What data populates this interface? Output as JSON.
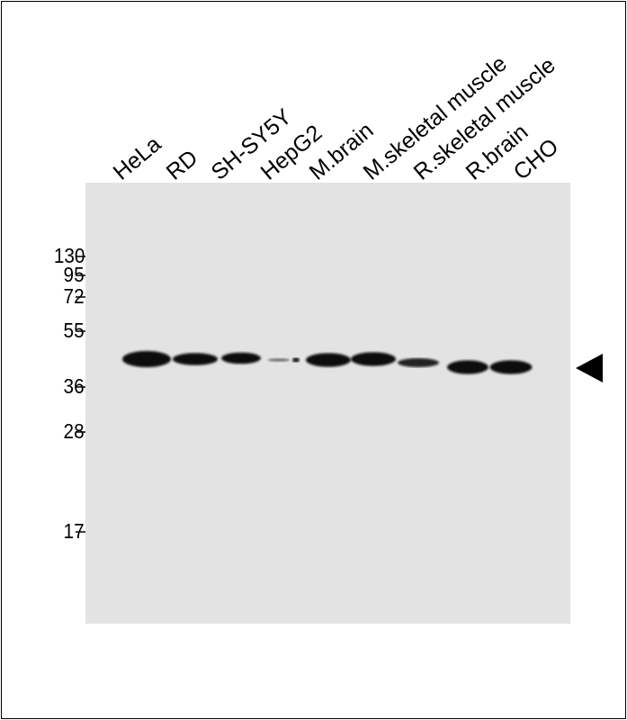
{
  "lanes": [
    "HeLa",
    "RD",
    "SH-SY5Y",
    "HepG2",
    "M.brain",
    "M.skeletal muscle",
    "R.skeletal muscle",
    "R.brain",
    "CHO"
  ],
  "band_intensity": [
    1.0,
    0.75,
    0.7,
    0.2,
    0.85,
    0.85,
    0.55,
    0.85,
    0.85
  ],
  "markers": [
    "130",
    "95",
    "72",
    "55",
    "36",
    "28",
    "17"
  ],
  "arrow_icon": "left-pointing-triangle",
  "colors": {
    "membrane": "#e3e3e3",
    "band": "#111111"
  }
}
